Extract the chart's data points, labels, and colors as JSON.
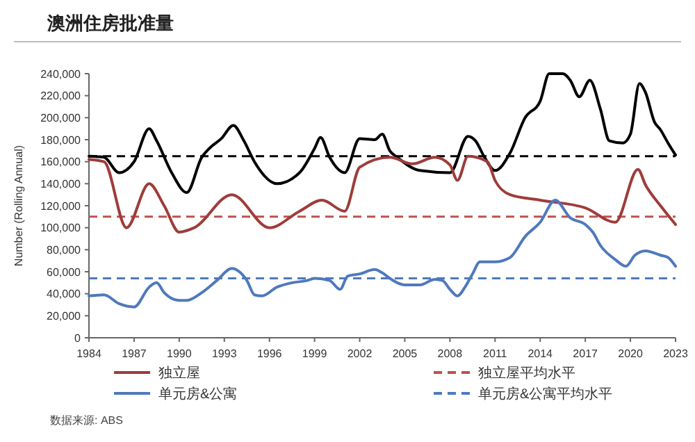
{
  "chart_data": {
    "type": "line",
    "title": "澳洲住房批准量",
    "ylabel": "Number (Rolling Annual)",
    "xlim": [
      1984,
      2023
    ],
    "xticks": [
      1984,
      1987,
      1990,
      1993,
      1996,
      1999,
      2002,
      2005,
      2008,
      2011,
      2014,
      2017,
      2020,
      2023
    ],
    "ylim": [
      0,
      240000
    ],
    "yticks": [
      {
        "value": 0,
        "label": "0"
      },
      {
        "value": 20000,
        "label": "20,000"
      },
      {
        "value": 40000,
        "label": "40,000"
      },
      {
        "value": 60000,
        "label": "60,000"
      },
      {
        "value": 80000,
        "label": "80,000"
      },
      {
        "value": 100000,
        "label": "100,000"
      },
      {
        "value": 120000,
        "label": "120,000"
      },
      {
        "value": 140000,
        "label": "140,000"
      },
      {
        "value": 160000,
        "label": "160,000"
      },
      {
        "value": 180000,
        "label": "180,000"
      },
      {
        "value": 200000,
        "label": "200,000"
      },
      {
        "value": 220000,
        "label": "220,000"
      },
      {
        "value": 240000,
        "label": "240,000"
      }
    ],
    "grid": false,
    "legend": "bottom",
    "marker": "none",
    "line_style": "solid",
    "series": [
      {
        "color": "#000000",
        "x": [
          1984,
          1985,
          1986,
          1987,
          1988,
          1988.5,
          1989.5,
          1990.5,
          1991.5,
          1992,
          1992.8,
          1993.6,
          1994.3,
          1995,
          1996.5,
          1998,
          1999,
          1999.4,
          2000,
          2001,
          2002,
          2003,
          2003.5,
          2004,
          2004.5,
          2006,
          2008,
          2009.2,
          2009.7,
          2010.3,
          2011,
          2012,
          2013,
          2014,
          2014.6,
          2015.5,
          2016,
          2016.6,
          2017.3,
          2018,
          2018.6,
          2019.5,
          2020,
          2020.6,
          2021,
          2021.6,
          2022,
          2022.5,
          2023
        ],
        "values": [
          165000,
          164000,
          150000,
          160000,
          190000,
          179000,
          150000,
          132000,
          164000,
          172000,
          181000,
          193000,
          179000,
          160000,
          140000,
          150000,
          172000,
          182000,
          164000,
          150000,
          181000,
          180000,
          185000,
          170000,
          164000,
          152000,
          150000,
          183000,
          179000,
          164000,
          152000,
          168000,
          200000,
          215000,
          240000,
          240000,
          234000,
          219000,
          234000,
          208000,
          179000,
          177000,
          185000,
          231000,
          223000,
          196000,
          189000,
          177000,
          166000
        ]
      },
      {
        "name": "独立屋",
        "color": "#9e3c3a",
        "x": [
          1984,
          1985,
          1986.5,
          1988,
          1989,
          1990,
          1991,
          1993.5,
          1996,
          1998,
          1999.5,
          2001,
          2002,
          2004,
          2005.5,
          2007,
          2008,
          2008.5,
          2009.2,
          2010.5,
          2011,
          2012,
          2014,
          2017,
          2019,
          2020.5,
          2021,
          2022,
          2023
        ],
        "values": [
          162000,
          160000,
          100000,
          140000,
          120000,
          96000,
          100000,
          130000,
          100000,
          115000,
          125000,
          115000,
          155000,
          164000,
          158000,
          164000,
          157000,
          143000,
          165000,
          160000,
          143000,
          130000,
          125000,
          118000,
          105000,
          153000,
          139000,
          120000,
          103000
        ]
      },
      {
        "name": "单元房&公寓",
        "color": "#4f79bd",
        "x": [
          1984,
          1985,
          1986,
          1987,
          1988,
          1988.5,
          1989,
          1990,
          1990.5,
          1991.5,
          1992.5,
          1993.5,
          1994,
          1994.5,
          1995,
          1995.5,
          1996.5,
          1997.5,
          1998.5,
          1999,
          2000,
          2000.7,
          2001.2,
          2002,
          2003,
          2003.5,
          2004,
          2004.5,
          2005,
          2006,
          2007,
          2007.5,
          2008,
          2008.5,
          2009,
          2009.5,
          2010,
          2011,
          2012,
          2013,
          2014,
          2015,
          2016,
          2017,
          2017.5,
          2018,
          2019,
          2019.7,
          2020.3,
          2021,
          2022,
          2022.5,
          2023
        ],
        "values": [
          38000,
          39000,
          31000,
          28000,
          46000,
          50000,
          41000,
          34000,
          34000,
          41000,
          52000,
          63000,
          60000,
          52000,
          39000,
          38000,
          46000,
          50000,
          52000,
          54000,
          52000,
          44000,
          56000,
          58000,
          62000,
          59000,
          54000,
          50000,
          48000,
          48000,
          53000,
          52000,
          44000,
          38000,
          46000,
          58000,
          69000,
          69000,
          73000,
          92000,
          105000,
          125000,
          109000,
          103000,
          96000,
          84000,
          71000,
          65000,
          75000,
          79000,
          75000,
          73000,
          65000
        ]
      }
    ],
    "ref_lines": [
      {
        "axis": "y",
        "value": 165000,
        "color": "#000000",
        "line_style": "dashed"
      },
      {
        "axis": "y",
        "value": 110000,
        "label": "独立屋平均水平",
        "color": "#c0504d",
        "line_style": "dashed"
      },
      {
        "axis": "y",
        "value": 54000,
        "label": "单元房&公寓平均水平",
        "color": "#4f79bd",
        "line_style": "dashed"
      }
    ],
    "annotations": [
      "数据来源: ABS"
    ]
  }
}
